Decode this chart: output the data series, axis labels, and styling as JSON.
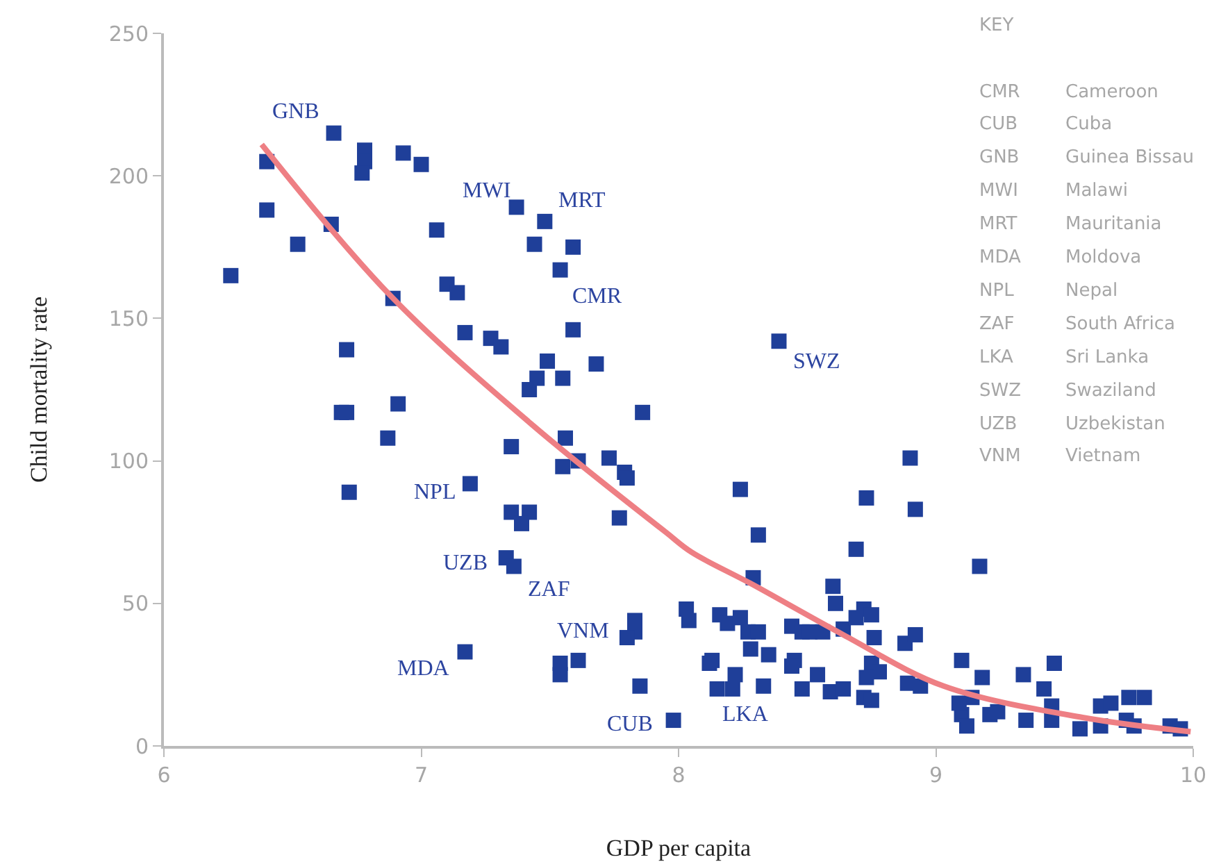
{
  "chart_data": {
    "type": "scatter",
    "xlabel": "GDP per capita",
    "ylabel": "Child mortality rate",
    "xlim": [
      6,
      10
    ],
    "ylim": [
      0,
      250
    ],
    "xticks": [
      6,
      7,
      8,
      9,
      10
    ],
    "yticks": [
      0,
      50,
      100,
      150,
      200,
      250
    ],
    "grid": false,
    "series": [
      {
        "marker": "square",
        "color": "#1f3f99",
        "x": [
          6.26,
          6.4,
          6.4,
          6.52,
          6.66,
          6.65,
          6.78,
          6.78,
          6.77,
          6.93,
          7.0,
          7.06,
          6.89,
          7.1,
          7.14,
          7.17,
          6.71,
          6.69,
          6.71,
          6.91,
          6.87,
          6.72,
          7.27,
          7.31,
          7.37,
          7.48,
          7.44,
          7.59,
          7.54,
          7.59,
          7.49,
          7.45,
          7.42,
          7.55,
          7.68,
          7.86,
          7.35,
          7.56,
          7.55,
          7.61,
          7.73,
          7.79,
          7.8,
          7.19,
          7.35,
          7.42,
          7.39,
          7.77,
          7.33,
          7.36,
          7.83,
          7.83,
          7.8,
          7.17,
          7.54,
          7.54,
          7.61,
          7.85,
          7.98,
          8.39,
          8.9,
          8.92,
          8.73,
          8.24,
          8.31,
          8.69,
          9.17,
          8.29,
          8.6,
          8.61,
          8.03,
          8.04,
          8.16,
          8.19,
          8.24,
          8.27,
          8.31,
          8.44,
          8.48,
          8.51,
          8.56,
          8.64,
          8.69,
          8.72,
          8.75,
          8.76,
          8.88,
          8.92,
          8.28,
          8.35,
          8.13,
          8.12,
          8.45,
          8.44,
          8.54,
          8.75,
          8.78,
          8.73,
          8.22,
          8.15,
          8.21,
          8.33,
          8.48,
          8.59,
          8.64,
          8.72,
          8.75,
          8.89,
          8.94,
          9.1,
          9.18,
          9.14,
          9.1,
          9.12,
          9.21,
          9.24,
          9.09,
          9.34,
          9.35,
          9.46,
          9.42,
          9.45,
          9.45,
          9.56,
          9.64,
          9.64,
          9.68,
          9.75,
          9.81,
          9.74,
          9.77,
          9.91,
          9.95
        ],
        "values": [
          165,
          205,
          188,
          176,
          215,
          183,
          209,
          205,
          201,
          208,
          204,
          181,
          157,
          162,
          159,
          145,
          139,
          117,
          117,
          120,
          108,
          89,
          143,
          140,
          189,
          184,
          176,
          175,
          167,
          146,
          135,
          129,
          125,
          129,
          134,
          117,
          105,
          108,
          98,
          100,
          101,
          96,
          94,
          92,
          82,
          82,
          78,
          80,
          66,
          63,
          44,
          40,
          38,
          33,
          29,
          25,
          30,
          21,
          9,
          142,
          101,
          83,
          87,
          90,
          74,
          69,
          63,
          59,
          56,
          50,
          48,
          44,
          46,
          43,
          45,
          40,
          40,
          42,
          40,
          40,
          40,
          41,
          45,
          48,
          46,
          38,
          36,
          39,
          34,
          32,
          30,
          29,
          30,
          28,
          25,
          29,
          26,
          24,
          25,
          20,
          20,
          21,
          20,
          19,
          20,
          17,
          16,
          22,
          21,
          30,
          24,
          17,
          11,
          7,
          11,
          12,
          15,
          25,
          9,
          29,
          20,
          14,
          9,
          6,
          14,
          7,
          15,
          17,
          17,
          9,
          7,
          7,
          6
        ]
      },
      {
        "type": "line",
        "marker": "none",
        "color": "#ee7f84",
        "x": [
          6.38,
          6.88,
          7.44,
          7.95,
          8.05,
          8.28,
          8.64,
          9.03,
          9.57,
          9.99
        ],
        "values": [
          211,
          158,
          112,
          75,
          68,
          57,
          39,
          21,
          10,
          5
        ]
      }
    ],
    "annotations": [
      {
        "text": "GNB",
        "x": 6.4,
        "y": 205
      },
      {
        "text": "MWI",
        "x": 7.37,
        "y": 189
      },
      {
        "text": "MRT",
        "x": 7.48,
        "y": 184
      },
      {
        "text": "CMR",
        "x": 7.59,
        "y": 146
      },
      {
        "text": "SWZ",
        "x": 8.39,
        "y": 142
      },
      {
        "text": "NPL",
        "x": 7.19,
        "y": 92
      },
      {
        "text": "UZB",
        "x": 7.33,
        "y": 66
      },
      {
        "text": "ZAF",
        "x": 7.36,
        "y": 63
      },
      {
        "text": "VNM",
        "x": 7.8,
        "y": 38
      },
      {
        "text": "MDA",
        "x": 7.17,
        "y": 33
      },
      {
        "text": "CUB",
        "x": 7.98,
        "y": 9
      },
      {
        "text": "LKA",
        "x": 8.21,
        "y": 20
      },
      "KEY",
      "CMR",
      "Cameroon",
      "CUB",
      "Cuba",
      "GNB",
      "Guinea Bissau",
      "MWI",
      "Malawi",
      "MRT",
      "Mauritania",
      "MDA",
      "Moldova",
      "NPL",
      "Nepal",
      "ZAF",
      "South Africa",
      "LKA",
      "Sri Lanka",
      "SWZ",
      "Swaziland",
      "UZB",
      "Uzbekistan",
      "VNM",
      "Vietnam"
    ]
  }
}
